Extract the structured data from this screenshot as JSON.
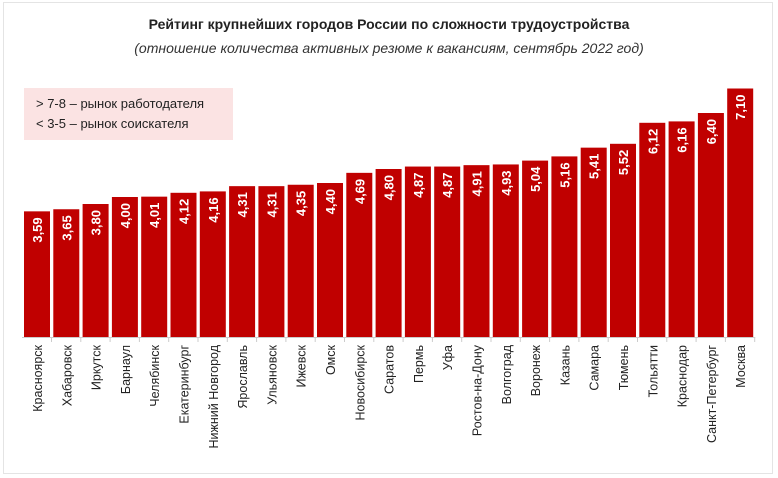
{
  "chart_data": {
    "type": "bar",
    "title": "Рейтинг крупнейших городов России по сложности трудоустройства",
    "subtitle": "(отношение количества активных резюме к вакансиям, сентябрь 2022 год)",
    "legend_notes": [
      "> 7-8 – рынок работодателя",
      "< 3-5 – рынок соискателя"
    ],
    "categories": [
      "Красноярск",
      "Хабаровск",
      "Иркутск",
      "Барнаул",
      "Челябинск",
      "Екатеринбург",
      "Нижний Новгород",
      "Ярославль",
      "Ульяновск",
      "Ижевск",
      "Омск",
      "Новосибирск",
      "Саратов",
      "Пермь",
      "Уфа",
      "Ростов-на-Дону",
      "Волгоград",
      "Воронеж",
      "Казань",
      "Самара",
      "Тюмень",
      "Тольятти",
      "Краснодар",
      "Санкт-Петербург",
      "Москва"
    ],
    "values": [
      3.59,
      3.65,
      3.8,
      4.0,
      4.01,
      4.12,
      4.16,
      4.31,
      4.31,
      4.35,
      4.4,
      4.69,
      4.8,
      4.87,
      4.87,
      4.91,
      4.93,
      5.04,
      5.16,
      5.41,
      5.52,
      6.12,
      6.16,
      6.4,
      7.1
    ],
    "data_labels": [
      "3,59",
      "3,65",
      "3,80",
      "4,00",
      "4,01",
      "4,12",
      "4,16",
      "4,31",
      "4,31",
      "4,35",
      "4,40",
      "4,69",
      "4,80",
      "4,87",
      "4,87",
      "4,91",
      "4,93",
      "5,04",
      "5,16",
      "5,41",
      "5,52",
      "6,12",
      "6,16",
      "6,40",
      "7,10"
    ],
    "xlabel": "",
    "ylabel": "",
    "ylim": [
      0,
      7.2
    ],
    "grid": false,
    "legend_position": "top-left",
    "colors": {
      "bar": "#c00000",
      "label": "#ffffff",
      "legend_bg": "#fbe3e3"
    }
  }
}
